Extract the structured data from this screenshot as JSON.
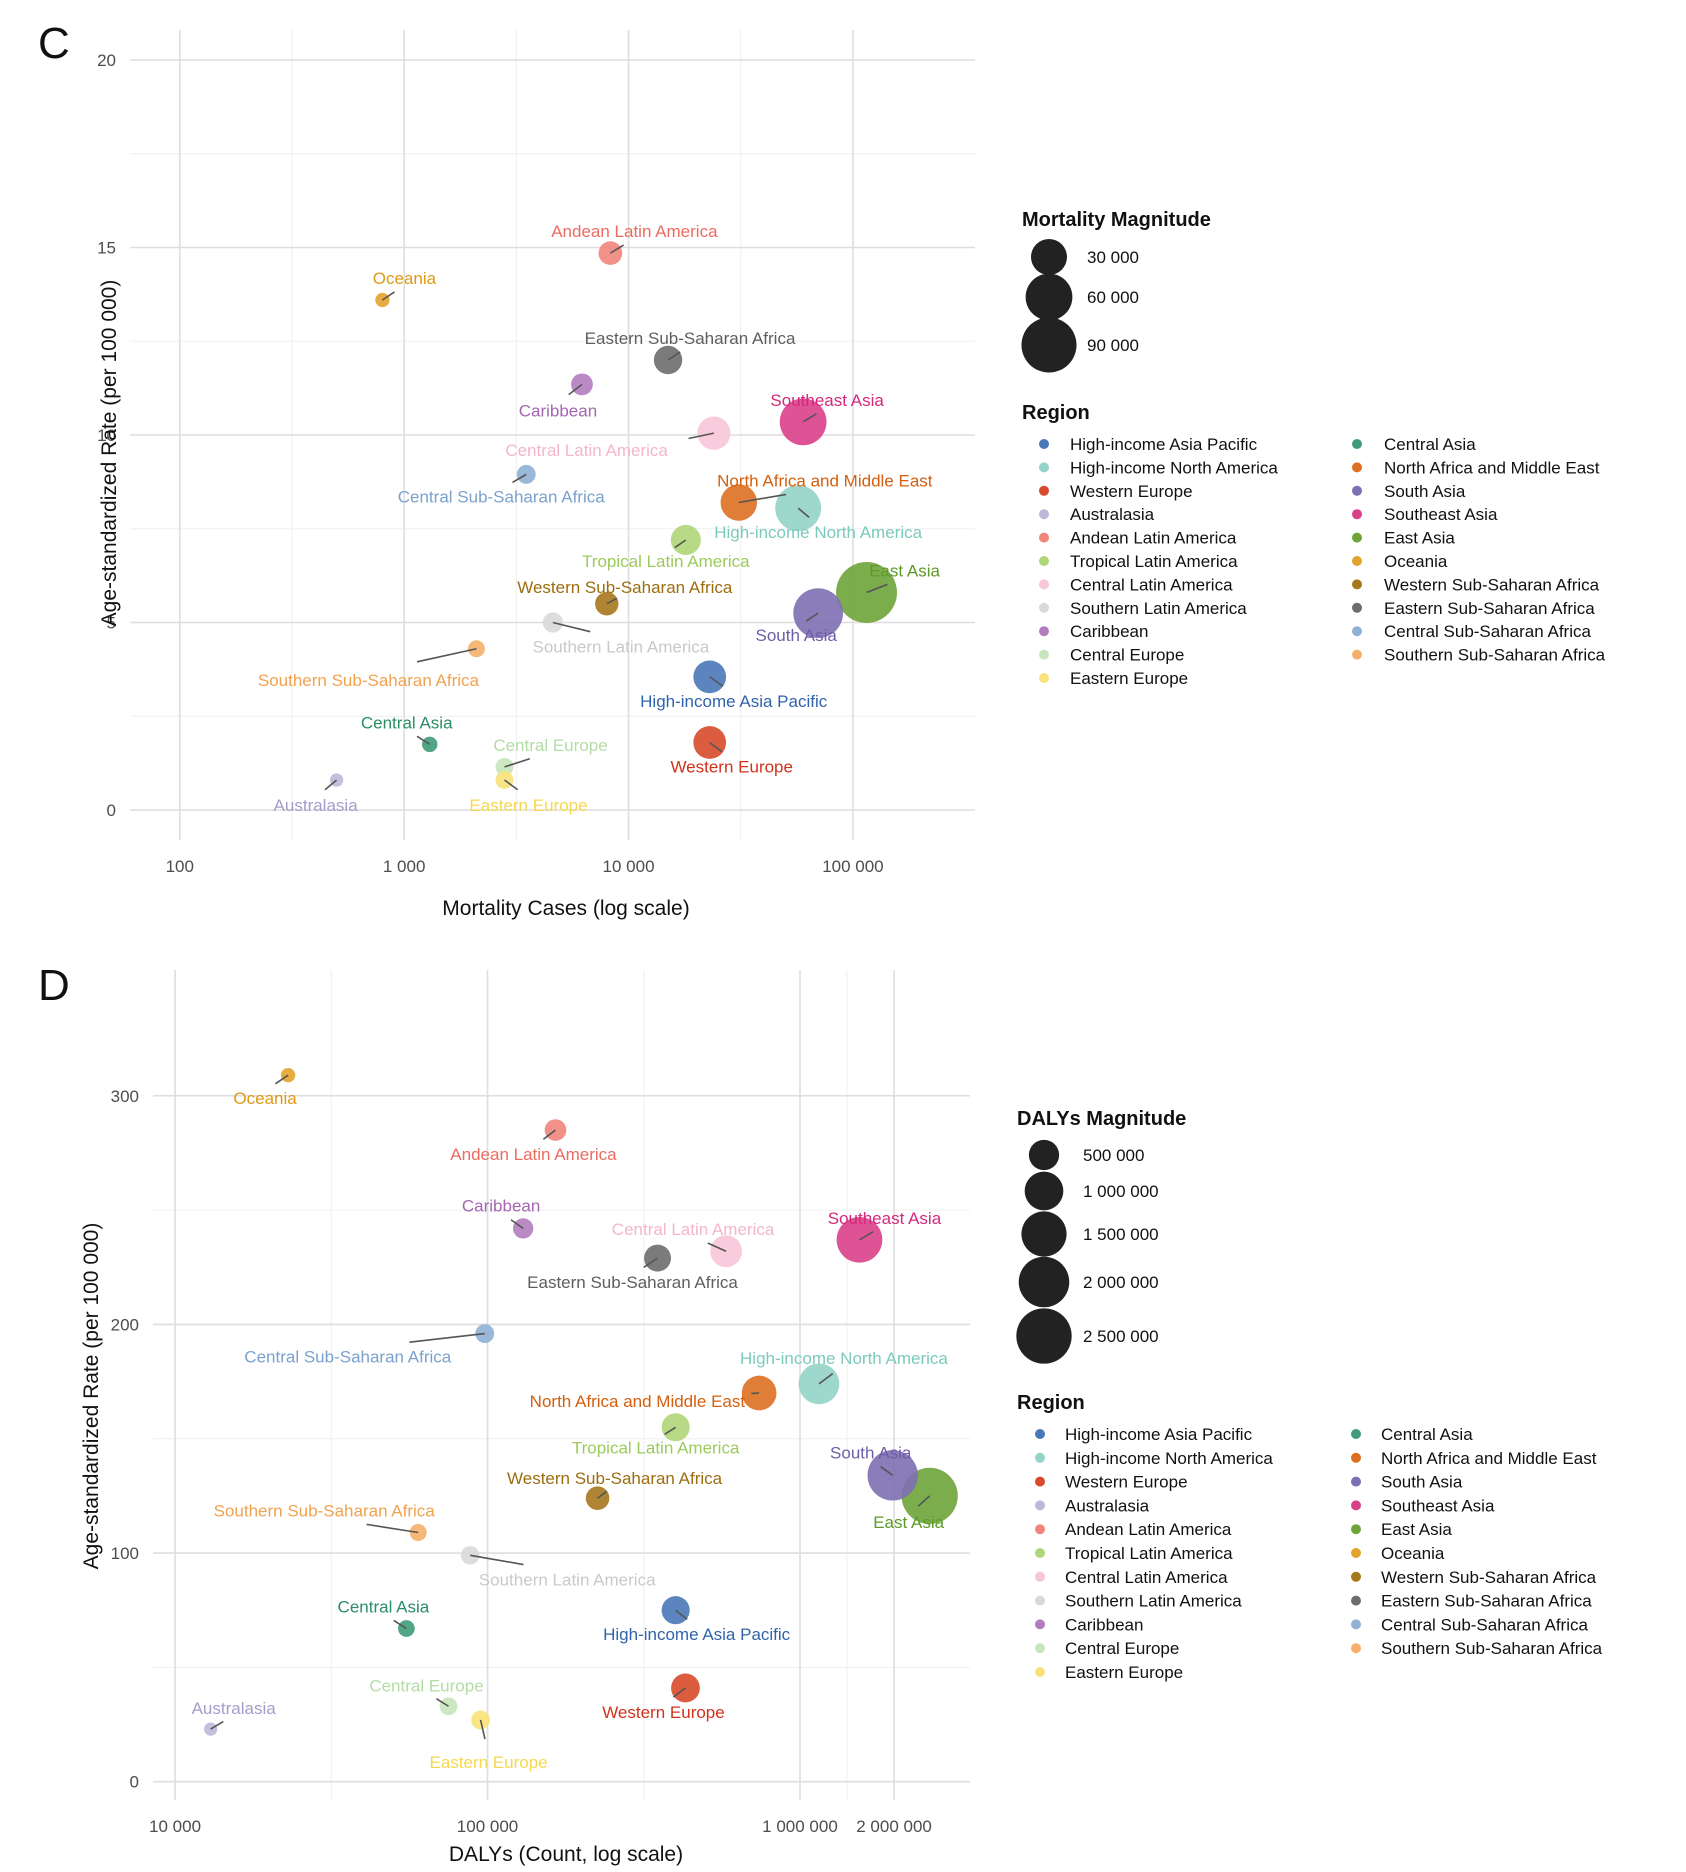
{
  "chart_data": [
    {
      "panel_label": "C",
      "type": "scatter",
      "xlabel": "Mortality Cases (log scale)",
      "ylabel": "Age-standardized Rate (per 100 000)",
      "x_scale": "log10",
      "xlim": [
        60,
        350000
      ],
      "ylim": [
        -0.8,
        20.8
      ],
      "x_ticks": [
        100,
        1000,
        10000,
        100000
      ],
      "x_tick_labels": [
        "100",
        "1 000",
        "10 000",
        "100 000"
      ],
      "y_ticks": [
        0,
        5,
        10,
        15,
        20
      ],
      "y_tick_labels": [
        "0",
        "5",
        "10",
        "15",
        "20"
      ],
      "grid": true,
      "size_legend": {
        "title": "Mortality Magnitude",
        "entries": [
          {
            "value": 30000,
            "label": "30 000"
          },
          {
            "value": 60000,
            "label": "60 000"
          },
          {
            "value": 90000,
            "label": "90 000"
          }
        ]
      },
      "points": [
        {
          "region": "Andean Latin America",
          "label": "Andean Latin America",
          "x": 8300,
          "y": 14.85,
          "size": 8300
        },
        {
          "region": "Oceania",
          "label": "Oceania",
          "x": 800,
          "y": 13.6,
          "size": 800
        },
        {
          "region": "Eastern Sub-Saharan Africa",
          "label": "Eastern Sub-Saharan Africa",
          "x": 15000,
          "y": 12.0,
          "size": 15000
        },
        {
          "region": "Caribbean",
          "label": "Caribbean",
          "x": 6200,
          "y": 11.35,
          "size": 6200
        },
        {
          "region": "Southeast Asia",
          "label": "Southeast Asia",
          "x": 60000,
          "y": 10.35,
          "size": 60000
        },
        {
          "region": "Central Latin America",
          "label": "Central Latin America",
          "x": 24000,
          "y": 10.05,
          "size": 24000
        },
        {
          "region": "Central Sub-Saharan Africa",
          "label": "Central Sub-Saharan Africa",
          "x": 3500,
          "y": 8.95,
          "size": 3500
        },
        {
          "region": "North Africa and Middle East",
          "label": "North Africa and Middle East",
          "x": 31000,
          "y": 8.2,
          "size": 31000
        },
        {
          "region": "High-income North America",
          "label": "High-income North America",
          "x": 57000,
          "y": 8.05,
          "size": 57000
        },
        {
          "region": "Tropical Latin America",
          "label": "Tropical Latin America",
          "x": 18000,
          "y": 7.2,
          "size": 18000
        },
        {
          "region": "East Asia",
          "label": "East Asia",
          "x": 115000,
          "y": 5.8,
          "size": 115000
        },
        {
          "region": "Western Sub-Saharan Africa",
          "label": "Western Sub-Saharan Africa",
          "x": 8000,
          "y": 5.5,
          "size": 8000
        },
        {
          "region": "South Asia",
          "label": "South Asia",
          "x": 70000,
          "y": 5.25,
          "size": 70000
        },
        {
          "region": "Southern Latin America",
          "label": "Southern Latin America",
          "x": 4600,
          "y": 5.0,
          "size": 4600
        },
        {
          "region": "Southern Sub-Saharan Africa",
          "label": "Southern Sub-Saharan Africa",
          "x": 2100,
          "y": 4.3,
          "size": 2100
        },
        {
          "region": "High-income Asia Pacific",
          "label": "High-income Asia Pacific",
          "x": 23000,
          "y": 3.55,
          "size": 23000
        },
        {
          "region": "Western Europe",
          "label": "Western Europe",
          "x": 23000,
          "y": 1.8,
          "size": 23000
        },
        {
          "region": "Central Asia",
          "label": "Central Asia",
          "x": 1300,
          "y": 1.75,
          "size": 1300
        },
        {
          "region": "Central Europe",
          "label": "Central Europe",
          "x": 2800,
          "y": 1.15,
          "size": 2800
        },
        {
          "region": "Eastern Europe",
          "label": "Eastern Europe",
          "x": 2800,
          "y": 0.8,
          "size": 2800
        },
        {
          "region": "Australasia",
          "label": "Australasia",
          "x": 500,
          "y": 0.8,
          "size": 500
        }
      ]
    },
    {
      "panel_label": "D",
      "type": "scatter",
      "xlabel": "DALYs (Count, log scale)",
      "ylabel": "Age-standardized Rate (per 100 000)",
      "x_scale": "log10",
      "xlim": [
        8500,
        3500000
      ],
      "ylim": [
        -8,
        355
      ],
      "x_ticks": [
        10000,
        100000,
        1000000,
        2000000
      ],
      "x_tick_labels": [
        "10 000",
        "100 000",
        "1 000 000",
        "2 000 000"
      ],
      "y_ticks": [
        0,
        100,
        200,
        300
      ],
      "y_tick_labels": [
        "0",
        "100",
        "200",
        "300"
      ],
      "grid": true,
      "size_legend": {
        "title": "DALYs Magnitude",
        "entries": [
          {
            "value": 500000,
            "label": "500 000"
          },
          {
            "value": 1000000,
            "label": "1 000 000"
          },
          {
            "value": 1500000,
            "label": "1 500 000"
          },
          {
            "value": 2000000,
            "label": "2 000 000"
          },
          {
            "value": 2500000,
            "label": "2 500 000"
          }
        ]
      },
      "points": [
        {
          "region": "Oceania",
          "label": "Oceania",
          "x": 23000,
          "y": 309,
          "size": 23000
        },
        {
          "region": "Andean Latin America",
          "label": "Andean Latin America",
          "x": 165000,
          "y": 285,
          "size": 165000
        },
        {
          "region": "Caribbean",
          "label": "Caribbean",
          "x": 130000,
          "y": 242,
          "size": 130000
        },
        {
          "region": "Central Latin America",
          "label": "Central Latin America",
          "x": 580000,
          "y": 232,
          "size": 580000
        },
        {
          "region": "Eastern Sub-Saharan Africa",
          "label": "Eastern Sub-Saharan Africa",
          "x": 350000,
          "y": 229,
          "size": 350000
        },
        {
          "region": "Southeast Asia",
          "label": "Southeast Asia",
          "x": 1550000,
          "y": 237,
          "size": 1550000
        },
        {
          "region": "Central Sub-Saharan Africa",
          "label": "Central Sub-Saharan Africa",
          "x": 98000,
          "y": 196,
          "size": 98000
        },
        {
          "region": "High-income North America",
          "label": "High-income North America",
          "x": 1150000,
          "y": 174,
          "size": 1150000
        },
        {
          "region": "North Africa and Middle East",
          "label": "North Africa and Middle East",
          "x": 740000,
          "y": 170,
          "size": 740000
        },
        {
          "region": "Tropical Latin America",
          "label": "Tropical Latin America",
          "x": 400000,
          "y": 155,
          "size": 400000
        },
        {
          "region": "South Asia",
          "label": "South Asia",
          "x": 1980000,
          "y": 134,
          "size": 1980000
        },
        {
          "region": "East Asia",
          "label": "East Asia",
          "x": 2600000,
          "y": 125,
          "size": 2600000
        },
        {
          "region": "Western Sub-Saharan Africa",
          "label": "Western Sub-Saharan Africa",
          "x": 225000,
          "y": 124,
          "size": 225000
        },
        {
          "region": "Southern Sub-Saharan Africa",
          "label": "Southern Sub-Saharan Africa",
          "x": 60000,
          "y": 109,
          "size": 60000
        },
        {
          "region": "Southern Latin America",
          "label": "Southern Latin America",
          "x": 88000,
          "y": 99,
          "size": 88000
        },
        {
          "region": "High-income Asia Pacific",
          "label": "High-income Asia Pacific",
          "x": 400000,
          "y": 75,
          "size": 400000
        },
        {
          "region": "Central Asia",
          "label": "Central Asia",
          "x": 55000,
          "y": 67,
          "size": 55000
        },
        {
          "region": "Western Europe",
          "label": "Western Europe",
          "x": 430000,
          "y": 41,
          "size": 430000
        },
        {
          "region": "Central Europe",
          "label": "Central Europe",
          "x": 75000,
          "y": 33,
          "size": 75000
        },
        {
          "region": "Eastern Europe",
          "label": "Eastern Europe",
          "x": 95000,
          "y": 27,
          "size": 95000
        },
        {
          "region": "Australasia",
          "label": "Australasia",
          "x": 13000,
          "y": 23,
          "size": 13000
        }
      ]
    }
  ],
  "region_legend": {
    "title": "Region",
    "columns": [
      [
        "High-income Asia Pacific",
        "High-income North America",
        "Western Europe",
        "Australasia",
        "Andean Latin America",
        "Tropical Latin America",
        "Central Latin America",
        "Southern Latin America",
        "Caribbean",
        "Central Europe",
        "Eastern Europe"
      ],
      [
        "Central Asia",
        "North Africa and Middle East",
        "South Asia",
        "Southeast Asia",
        "East Asia",
        "Oceania",
        "Western Sub-Saharan Africa",
        "Eastern Sub-Saharan Africa",
        "Central Sub-Saharan Africa",
        "Southern Sub-Saharan Africa"
      ]
    ]
  },
  "colors": {
    "High-income Asia Pacific": "#4a78b8",
    "High-income North America": "#94d3c7",
    "Western Europe": "#d84a2b",
    "Australasia": "#bcb8d9",
    "Andean Latin America": "#f0857b",
    "Tropical Latin America": "#b0d67a",
    "Central Latin America": "#f7c7d8",
    "Southern Latin America": "#d9d9d9",
    "Caribbean": "#b27dbf",
    "Central Europe": "#c7e6bd",
    "Eastern Europe": "#f9e279",
    "Central Asia": "#3f9b78",
    "North Africa and Middle East": "#dd6f21",
    "South Asia": "#7e6fb2",
    "Southeast Asia": "#d9408a",
    "East Asia": "#6ea43a",
    "Oceania": "#e3a32c",
    "Western Sub-Saharan Africa": "#a6781e",
    "Eastern Sub-Saharan Africa": "#6d6d6d",
    "Central Sub-Saharan Africa": "#8fb1d4",
    "Southern Sub-Saharan Africa": "#f4b06a"
  },
  "label_colors": {
    "High-income Asia Pacific": "#2f64ac",
    "High-income North America": "#7ccabb",
    "Western Europe": "#d0331c",
    "Australasia": "#a29ecb",
    "Andean Latin America": "#ec6b60",
    "Tropical Latin America": "#9ccb5b",
    "Central Latin America": "#f3b6cb",
    "Southern Latin America": "#c9c9c9",
    "Caribbean": "#a466b3",
    "Central Europe": "#b3dca6",
    "Eastern Europe": "#f5d84f",
    "Central Asia": "#2a8e66",
    "North Africa and Middle East": "#d45f0e",
    "South Asia": "#6e5ea7",
    "Southeast Asia": "#d4297c",
    "East Asia": "#5f9a28",
    "Oceania": "#dd9a15",
    "Western Sub-Saharan Africa": "#9c6d10",
    "Eastern Sub-Saharan Africa": "#5e5e5e",
    "Central Sub-Saharan Africa": "#7aa2cd",
    "Southern Sub-Saharan Africa": "#f2a24f"
  }
}
